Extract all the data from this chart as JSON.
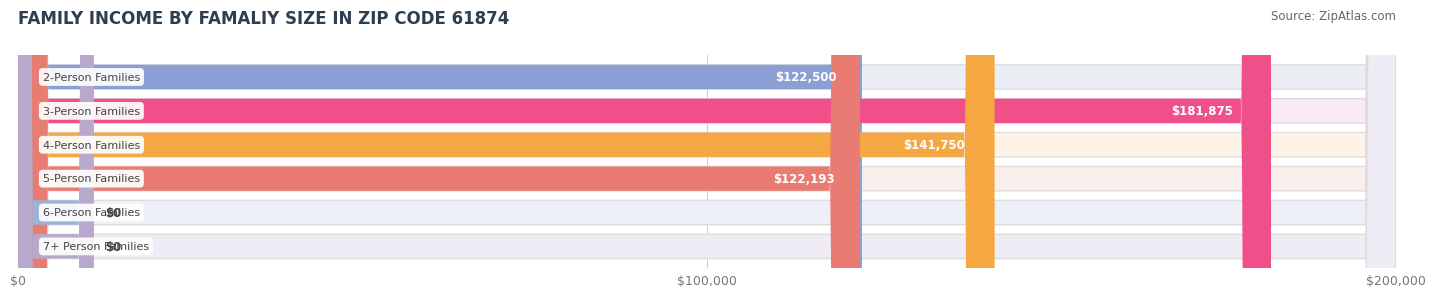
{
  "title": "FAMILY INCOME BY FAMALIY SIZE IN ZIP CODE 61874",
  "source": "Source: ZipAtlas.com",
  "categories": [
    "2-Person Families",
    "3-Person Families",
    "4-Person Families",
    "5-Person Families",
    "6-Person Families",
    "7+ Person Families"
  ],
  "values": [
    122500,
    181875,
    141750,
    122193,
    0,
    0
  ],
  "bar_colors": [
    "#8b9fd4",
    "#f0508a",
    "#f5a742",
    "#e87b72",
    "#9ab3d5",
    "#b8a8cc"
  ],
  "bar_bg_colors": [
    "#eceef5",
    "#f9eaf3",
    "#fdf4e7",
    "#faeeed",
    "#edf1f7",
    "#f0ecf5"
  ],
  "value_labels": [
    "$122,500",
    "$181,875",
    "$141,750",
    "$122,193",
    "$0",
    "$0"
  ],
  "xlim": [
    0,
    200000
  ],
  "xticks": [
    0,
    100000,
    200000
  ],
  "xtick_labels": [
    "$0",
    "$100,000",
    "$200,000"
  ],
  "title_fontsize": 12,
  "source_fontsize": 8.5,
  "bar_height": 0.72,
  "background_color": "#ffffff",
  "fig_width": 14.06,
  "fig_height": 3.05
}
